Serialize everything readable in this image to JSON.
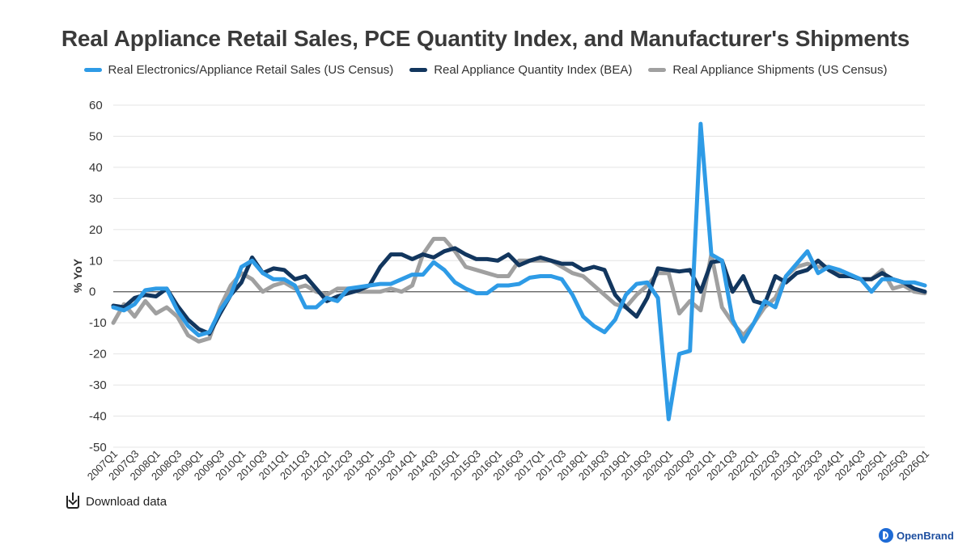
{
  "header": {
    "title": "Real Appliance Retail Sales, PCE Quantity Index, and Manufacturer's Shipments"
  },
  "footer": {
    "download_label": "Download data",
    "brand_name": "OpenBrand"
  },
  "chart_data": {
    "type": "line",
    "title": "Real Appliance Retail Sales, PCE Quantity Index, and Manufacturer's Shipments",
    "xlabel": "",
    "ylabel": "% YoY",
    "ylim": [
      -50,
      60
    ],
    "yticks": [
      60,
      50,
      40,
      30,
      20,
      10,
      0,
      -10,
      -20,
      -30,
      -40,
      -50
    ],
    "grid": true,
    "legend_position": "top-center",
    "x_tick_labels": [
      "2007Q1",
      "2007Q3",
      "2008Q1",
      "2008Q3",
      "2009Q1",
      "2009Q3",
      "2010Q1",
      "2010Q3",
      "2011Q1",
      "2011Q3",
      "2012Q1",
      "2012Q3",
      "2013Q1",
      "2013Q3",
      "2014Q1",
      "2014Q3",
      "2015Q1",
      "2015Q3",
      "2016Q1",
      "2016Q3",
      "2017Q1",
      "2017Q3",
      "2018Q1",
      "2018Q3",
      "2019Q1",
      "2019Q3",
      "2020Q1",
      "2020Q3",
      "2021Q1",
      "2021Q3",
      "2022Q1",
      "2022Q3",
      "2023Q1",
      "2023Q3",
      "2024Q1",
      "2024Q3",
      "2025Q1",
      "2025Q3",
      "2026Q1"
    ],
    "x": [
      "2007Q1",
      "2007Q2",
      "2007Q3",
      "2007Q4",
      "2008Q1",
      "2008Q2",
      "2008Q3",
      "2008Q4",
      "2009Q1",
      "2009Q2",
      "2009Q3",
      "2009Q4",
      "2010Q1",
      "2010Q2",
      "2010Q3",
      "2010Q4",
      "2011Q1",
      "2011Q2",
      "2011Q3",
      "2011Q4",
      "2012Q1",
      "2012Q2",
      "2012Q3",
      "2012Q4",
      "2013Q1",
      "2013Q2",
      "2013Q3",
      "2013Q4",
      "2014Q1",
      "2014Q2",
      "2014Q3",
      "2014Q4",
      "2015Q1",
      "2015Q2",
      "2015Q3",
      "2015Q4",
      "2016Q1",
      "2016Q2",
      "2016Q3",
      "2016Q4",
      "2017Q1",
      "2017Q2",
      "2017Q3",
      "2017Q4",
      "2018Q1",
      "2018Q2",
      "2018Q3",
      "2018Q4",
      "2019Q1",
      "2019Q2",
      "2019Q3",
      "2019Q4",
      "2020Q1",
      "2020Q2",
      "2020Q3",
      "2020Q4",
      "2021Q1",
      "2021Q2",
      "2021Q3",
      "2021Q4",
      "2022Q1",
      "2022Q2",
      "2022Q3",
      "2022Q4",
      "2023Q1",
      "2023Q2",
      "2023Q3",
      "2023Q4",
      "2024Q1",
      "2024Q2",
      "2024Q3",
      "2024Q4",
      "2025Q1",
      "2025Q2",
      "2025Q3",
      "2025Q4",
      "2026Q1"
    ],
    "series": [
      {
        "name": "Real Electronics/Appliance Retail Sales (US Census)",
        "color": "#2e9be6",
        "values": [
          -5,
          -6,
          -4,
          0.5,
          1,
          1,
          -6,
          -11,
          -14,
          -13,
          -6,
          -1,
          8,
          10,
          6,
          4,
          4,
          2,
          -5,
          -5,
          -2,
          -3,
          1,
          1.5,
          2,
          2.5,
          2.5,
          4,
          5.5,
          5.5,
          9.5,
          7,
          3,
          1,
          -0.5,
          -0.5,
          2,
          2,
          2.5,
          4.5,
          5,
          5,
          4,
          -1,
          -8,
          -11,
          -13,
          -9,
          -1,
          2.5,
          3,
          -2,
          -41,
          -20,
          -19,
          54,
          12,
          10,
          -9,
          -16,
          -10,
          -3,
          -5,
          5,
          9,
          13,
          6,
          8,
          7,
          5.5,
          4,
          0,
          4,
          4,
          3,
          3,
          2
        ]
      },
      {
        "name": "Real Appliance Quantity Index (BEA)",
        "color": "#12365e",
        "values": [
          -4.5,
          -5,
          -2,
          -1,
          -1.5,
          1,
          -4.5,
          -9,
          -12,
          -13.5,
          -7,
          -1,
          3,
          11,
          6,
          7.5,
          7,
          4,
          5,
          1,
          -3,
          -1.5,
          -0.5,
          0.5,
          2,
          8,
          12,
          12,
          10.5,
          12,
          11,
          13,
          14,
          12,
          10.5,
          10.5,
          10,
          12,
          8.5,
          10,
          11,
          10,
          9,
          9,
          7,
          8,
          7,
          -1,
          -5,
          -8,
          -2,
          7.5,
          7,
          6.5,
          7,
          0,
          9.5,
          10,
          0,
          5,
          -3,
          -4,
          5,
          3,
          6,
          7,
          10,
          7,
          5,
          5,
          4,
          4,
          6,
          4,
          3,
          1,
          0
        ]
      },
      {
        "name": "Real Appliance Shipments (US Census)",
        "color": "#a0a0a0",
        "values": [
          -10,
          -4,
          -8,
          -3,
          -7,
          -5,
          -8,
          -14,
          -16,
          -15,
          -5,
          2,
          6,
          4,
          0,
          2,
          3,
          1,
          2,
          0,
          -1,
          1,
          1,
          0,
          0,
          0,
          1,
          0,
          2,
          12,
          17,
          17,
          13,
          8,
          7,
          6,
          5,
          5,
          10,
          10,
          10,
          10,
          8,
          6,
          5,
          2,
          -1,
          -4,
          -5,
          -1,
          2,
          6,
          6,
          -7,
          -3,
          -6,
          12,
          -5,
          -10,
          -14,
          -10,
          -5,
          -2,
          5,
          8,
          9,
          8,
          8,
          6,
          5,
          4,
          4,
          7,
          1,
          2,
          0,
          -0.5
        ]
      }
    ]
  }
}
